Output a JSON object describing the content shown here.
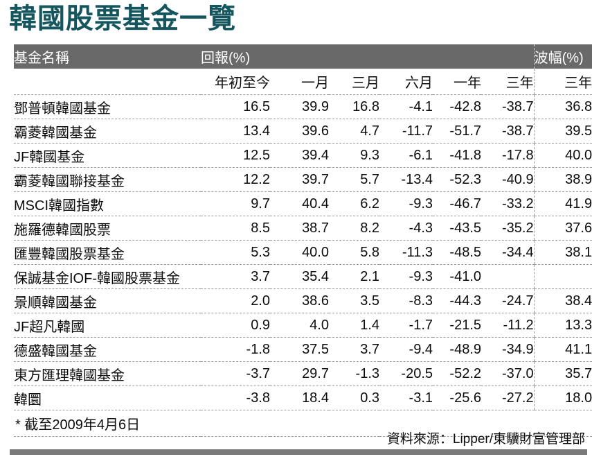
{
  "title": "韓國股票基金一覽",
  "chart_data": {
    "type": "table",
    "title": "韓國股票基金一覽",
    "column_groups": [
      {
        "label": "基金名稱",
        "span": 1
      },
      {
        "label": "回報(%)",
        "span": 6
      },
      {
        "label": "波幅(%)",
        "span": 1
      }
    ],
    "columns": [
      "基金名稱",
      "年初至今",
      "一月",
      "三月",
      "六月",
      "一年",
      "三年",
      "三年"
    ],
    "rows": [
      [
        "鄧普頓韓國基金",
        "16.5",
        "39.9",
        "16.8",
        "-4.1",
        "-42.8",
        "-38.7",
        "36.8"
      ],
      [
        "霸菱韓國基金",
        "13.4",
        "39.6",
        "4.7",
        "-11.7",
        "-51.7",
        "-38.7",
        "39.5"
      ],
      [
        "JF韓國基金",
        "12.5",
        "39.4",
        "9.3",
        "-6.1",
        "-41.8",
        "-17.8",
        "40.0"
      ],
      [
        "霸菱韓國聯接基金",
        "12.2",
        "39.7",
        "5.7",
        "-13.4",
        "-52.3",
        "-40.9",
        "38.9"
      ],
      [
        "MSCI韓國指數",
        "9.7",
        "40.4",
        "6.2",
        "-9.3",
        "-46.7",
        "-33.2",
        "41.9"
      ],
      [
        "施羅德韓國股票",
        "8.5",
        "38.7",
        "8.2",
        "-4.3",
        "-43.5",
        "-35.2",
        "37.6"
      ],
      [
        "匯豐韓國股票基金",
        "5.3",
        "40.0",
        "5.8",
        "-11.3",
        "-48.5",
        "-34.4",
        "38.1"
      ],
      [
        "保誠基金IOF-韓國股票基金",
        "3.7",
        "35.4",
        "2.1",
        "-9.3",
        "-41.0",
        "",
        ""
      ],
      [
        "景順韓國基金",
        "2.0",
        "38.6",
        "3.5",
        "-8.3",
        "-44.3",
        "-24.7",
        "38.4"
      ],
      [
        "JF超凡韓國",
        "0.9",
        "4.0",
        "1.4",
        "-1.7",
        "-21.5",
        "-11.2",
        "13.3"
      ],
      [
        "德盛韓國基金",
        "-1.8",
        "37.5",
        "3.7",
        "-9.4",
        "-48.9",
        "-34.9",
        "41.1"
      ],
      [
        "東方匯理韓國基金",
        "-3.7",
        "29.7",
        "-1.3",
        "-20.5",
        "-52.2",
        "-37.0",
        "35.7"
      ],
      [
        "韓圜",
        "-3.8",
        "18.4",
        "0.3",
        "-3.1",
        "-25.6",
        "-27.2",
        "18.0"
      ]
    ],
    "footnote": "* 截至2009年4月6日",
    "source": "資料來源：Lipper/東驥財富管理部",
    "layout": {
      "divider_before_last_column": true,
      "row_separator": "dashed"
    }
  },
  "colors": {
    "title_text": "#14555e",
    "header_bar_bg": "#696969",
    "header_bar_text": "#ffffff",
    "dashed_line": "#9b9b9b",
    "bottom_rule": "#7a7a7a",
    "body_text": "#0c0c0c"
  }
}
